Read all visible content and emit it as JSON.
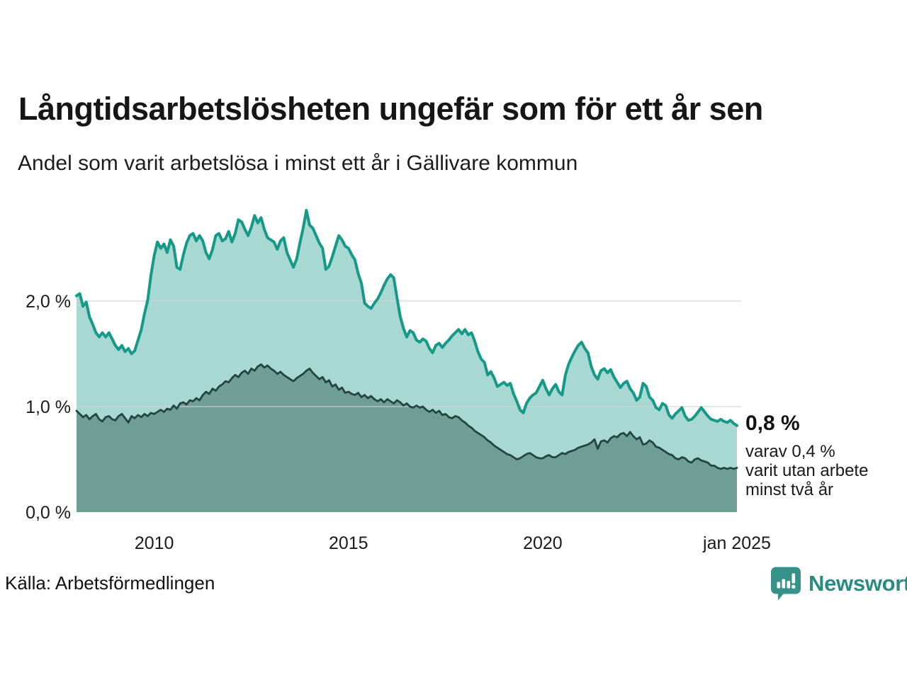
{
  "title": "Långtidsarbetslösheten ungefär som för ett år sen",
  "subtitle": "Andel som varit arbetslösa i minst ett år i Gällivare kommun",
  "source": "Källa: Arbetsförmedlingen",
  "logo": {
    "text": "Newsworthy",
    "icon": "newsworthy-pin-barchart-icon",
    "color": "#2b8a82",
    "icon_color": "#35918a"
  },
  "annotation": {
    "headline": "0,8 %",
    "lines": [
      "varav 0,4 %",
      "varit utan arbete",
      "minst två år"
    ]
  },
  "chart_data": {
    "type": "area",
    "title": "Långtidsarbetslösheten ungefär som för ett år sen",
    "subtitle": "Andel som varit arbetslösa i minst ett år i Gällivare kommun",
    "grid": "horizontal",
    "grid_color": "#cfd4d3",
    "x_axis": {
      "range": [
        2008.0,
        2025.0
      ],
      "step_months": 1,
      "ticks": [
        {
          "x": 2010,
          "label": "2010"
        },
        {
          "x": 2015,
          "label": "2015"
        },
        {
          "x": 2020,
          "label": "2020"
        },
        {
          "x": 2025,
          "label": "jan 2025"
        }
      ]
    },
    "y_axis": {
      "range": [
        0,
        2.9
      ],
      "unit": "%",
      "ticks": [
        {
          "v": 2.0,
          "label": "2,0 %"
        },
        {
          "v": 1.0,
          "label": "1,0 %"
        },
        {
          "v": 0.0,
          "label": "0,0 %"
        }
      ]
    },
    "series": [
      {
        "name": "Andel arbetslösa minst ett år",
        "color": "#17998a",
        "fill": "#a7d8d1",
        "stroke_width": 4,
        "end_value_label": "0,8 %",
        "values": [
          2.05,
          2.07,
          1.95,
          1.99,
          1.85,
          1.78,
          1.7,
          1.66,
          1.7,
          1.66,
          1.7,
          1.64,
          1.58,
          1.54,
          1.58,
          1.52,
          1.55,
          1.5,
          1.53,
          1.63,
          1.73,
          1.88,
          2.01,
          2.25,
          2.43,
          2.56,
          2.5,
          2.54,
          2.46,
          2.58,
          2.52,
          2.32,
          2.3,
          2.44,
          2.55,
          2.62,
          2.64,
          2.57,
          2.62,
          2.57,
          2.46,
          2.4,
          2.49,
          2.62,
          2.64,
          2.57,
          2.59,
          2.66,
          2.56,
          2.64,
          2.77,
          2.75,
          2.68,
          2.62,
          2.7,
          2.81,
          2.74,
          2.79,
          2.68,
          2.6,
          2.58,
          2.56,
          2.49,
          2.57,
          2.6,
          2.46,
          2.39,
          2.32,
          2.4,
          2.55,
          2.69,
          2.86,
          2.72,
          2.69,
          2.62,
          2.55,
          2.5,
          2.3,
          2.33,
          2.42,
          2.52,
          2.62,
          2.58,
          2.52,
          2.5,
          2.44,
          2.39,
          2.26,
          2.17,
          1.98,
          1.95,
          1.93,
          1.98,
          2.02,
          2.08,
          2.15,
          2.21,
          2.25,
          2.22,
          2.03,
          1.85,
          1.74,
          1.66,
          1.72,
          1.7,
          1.63,
          1.61,
          1.64,
          1.62,
          1.55,
          1.51,
          1.58,
          1.6,
          1.56,
          1.6,
          1.63,
          1.67,
          1.7,
          1.73,
          1.69,
          1.73,
          1.68,
          1.7,
          1.62,
          1.52,
          1.45,
          1.42,
          1.3,
          1.33,
          1.27,
          1.19,
          1.21,
          1.23,
          1.2,
          1.22,
          1.12,
          1.05,
          0.97,
          0.94,
          1.03,
          1.08,
          1.11,
          1.13,
          1.19,
          1.25,
          1.17,
          1.11,
          1.17,
          1.21,
          1.14,
          1.11,
          1.3,
          1.4,
          1.47,
          1.53,
          1.58,
          1.61,
          1.55,
          1.51,
          1.38,
          1.3,
          1.26,
          1.34,
          1.36,
          1.32,
          1.35,
          1.28,
          1.23,
          1.18,
          1.22,
          1.24,
          1.17,
          1.13,
          1.06,
          1.09,
          1.22,
          1.19,
          1.09,
          1.06,
          0.99,
          0.97,
          1.03,
          1.01,
          0.92,
          0.89,
          0.93,
          0.96,
          0.99,
          0.91,
          0.87,
          0.88,
          0.91,
          0.95,
          0.99,
          0.95,
          0.91,
          0.88,
          0.87,
          0.86,
          0.88,
          0.86,
          0.85,
          0.87,
          0.84,
          0.82
        ]
      },
      {
        "name": "Varav utan arbete minst två år",
        "color": "#24453e",
        "fill": "#6f9e97",
        "stroke_width": 2.8,
        "end_value_label": "0,4 %",
        "values": [
          0.96,
          0.93,
          0.9,
          0.92,
          0.88,
          0.91,
          0.93,
          0.88,
          0.86,
          0.9,
          0.91,
          0.88,
          0.87,
          0.91,
          0.93,
          0.89,
          0.85,
          0.91,
          0.89,
          0.92,
          0.9,
          0.93,
          0.91,
          0.94,
          0.93,
          0.95,
          0.97,
          0.95,
          0.98,
          0.97,
          1.01,
          0.98,
          1.03,
          1.04,
          1.02,
          1.06,
          1.05,
          1.08,
          1.06,
          1.11,
          1.14,
          1.12,
          1.17,
          1.15,
          1.19,
          1.21,
          1.24,
          1.23,
          1.27,
          1.3,
          1.28,
          1.32,
          1.34,
          1.31,
          1.36,
          1.34,
          1.38,
          1.4,
          1.37,
          1.39,
          1.36,
          1.34,
          1.31,
          1.33,
          1.3,
          1.28,
          1.26,
          1.24,
          1.27,
          1.29,
          1.31,
          1.34,
          1.36,
          1.32,
          1.29,
          1.26,
          1.28,
          1.23,
          1.25,
          1.19,
          1.21,
          1.16,
          1.18,
          1.13,
          1.14,
          1.12,
          1.11,
          1.13,
          1.09,
          1.11,
          1.08,
          1.1,
          1.07,
          1.05,
          1.07,
          1.04,
          1.07,
          1.05,
          1.03,
          1.06,
          1.04,
          1.01,
          1.03,
          1.0,
          0.99,
          1.01,
          0.99,
          1.0,
          0.97,
          0.95,
          0.97,
          0.94,
          0.96,
          0.92,
          0.93,
          0.9,
          0.89,
          0.91,
          0.9,
          0.87,
          0.85,
          0.82,
          0.8,
          0.77,
          0.75,
          0.73,
          0.71,
          0.68,
          0.66,
          0.63,
          0.61,
          0.59,
          0.57,
          0.55,
          0.54,
          0.52,
          0.5,
          0.51,
          0.53,
          0.55,
          0.56,
          0.54,
          0.52,
          0.51,
          0.51,
          0.53,
          0.54,
          0.52,
          0.52,
          0.54,
          0.56,
          0.55,
          0.57,
          0.58,
          0.59,
          0.61,
          0.62,
          0.63,
          0.64,
          0.66,
          0.69,
          0.6,
          0.67,
          0.68,
          0.66,
          0.7,
          0.72,
          0.71,
          0.74,
          0.75,
          0.72,
          0.76,
          0.72,
          0.69,
          0.71,
          0.64,
          0.65,
          0.68,
          0.66,
          0.62,
          0.61,
          0.59,
          0.57,
          0.55,
          0.54,
          0.51,
          0.5,
          0.52,
          0.51,
          0.48,
          0.47,
          0.5,
          0.51,
          0.49,
          0.48,
          0.47,
          0.44,
          0.44,
          0.42,
          0.41,
          0.42,
          0.41,
          0.42,
          0.41,
          0.42
        ]
      }
    ]
  }
}
